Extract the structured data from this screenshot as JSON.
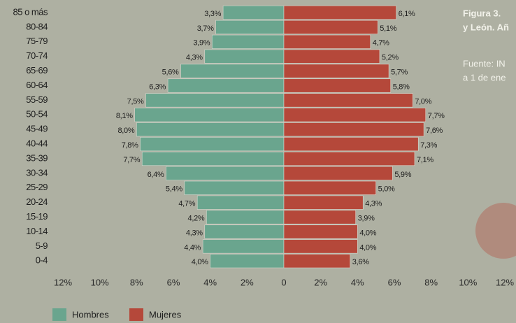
{
  "chart_data": {
    "type": "pyramid",
    "title": "Figura 3.",
    "subtitle": "y León. Añ",
    "source": [
      "Fuente: IN",
      "a 1 de ene"
    ],
    "categories": [
      "85 o más",
      "80-84",
      "75-79",
      "70-74",
      "65-69",
      "60-64",
      "55-59",
      "50-54",
      "45-49",
      "40-44",
      "35-39",
      "30-34",
      "25-29",
      "20-24",
      "15-19",
      "10-14",
      "5-9",
      "0-4"
    ],
    "series": [
      {
        "name": "Hombres",
        "color": "#6aa58e",
        "side": "left",
        "values": [
          3.3,
          3.7,
          3.9,
          4.3,
          5.6,
          6.3,
          7.5,
          8.1,
          8.0,
          7.8,
          7.7,
          6.4,
          5.4,
          4.7,
          4.2,
          4.3,
          4.4,
          4.0
        ],
        "value_labels": [
          "3,3%",
          "3,7%",
          "3,9%",
          "4,3%",
          "5,6%",
          "6,3%",
          "7,5%",
          "8,1%",
          "8,0%",
          "7,8%",
          "7,7%",
          "6,4%",
          "5,4%",
          "4,7%",
          "4,2%",
          "4,3%",
          "4,4%",
          "4,0%"
        ]
      },
      {
        "name": "Mujeres",
        "color": "#b5483a",
        "side": "right",
        "values": [
          6.1,
          5.1,
          4.7,
          5.2,
          5.7,
          5.8,
          7.0,
          7.7,
          7.6,
          7.3,
          7.1,
          5.9,
          5.0,
          4.3,
          3.9,
          4.0,
          4.0,
          3.6
        ],
        "value_labels": [
          "6,1%",
          "5,1%",
          "4,7%",
          "5,2%",
          "5,7%",
          "5,8%",
          "7,0%",
          "7,7%",
          "7,6%",
          "7,3%",
          "7,1%",
          "5,9%",
          "5,0%",
          "4,3%",
          "3,9%",
          "4,0%",
          "4,0%",
          "3,6%"
        ]
      }
    ],
    "xlim": [
      -12,
      12
    ],
    "xticks": [
      {
        "value": -12,
        "label": "12%"
      },
      {
        "value": -10,
        "label": "10%"
      },
      {
        "value": -8,
        "label": "8%"
      },
      {
        "value": -6,
        "label": "6%"
      },
      {
        "value": -4,
        "label": "4%"
      },
      {
        "value": -2,
        "label": "2%"
      },
      0,
      {
        "value": 2,
        "label": "2%"
      },
      {
        "value": 4,
        "label": "4%"
      },
      {
        "value": 6,
        "label": "6%"
      },
      {
        "value": 8,
        "label": "8%"
      },
      {
        "value": 10,
        "label": "10%"
      },
      {
        "value": 12,
        "label": "12%"
      }
    ],
    "grid": false
  }
}
